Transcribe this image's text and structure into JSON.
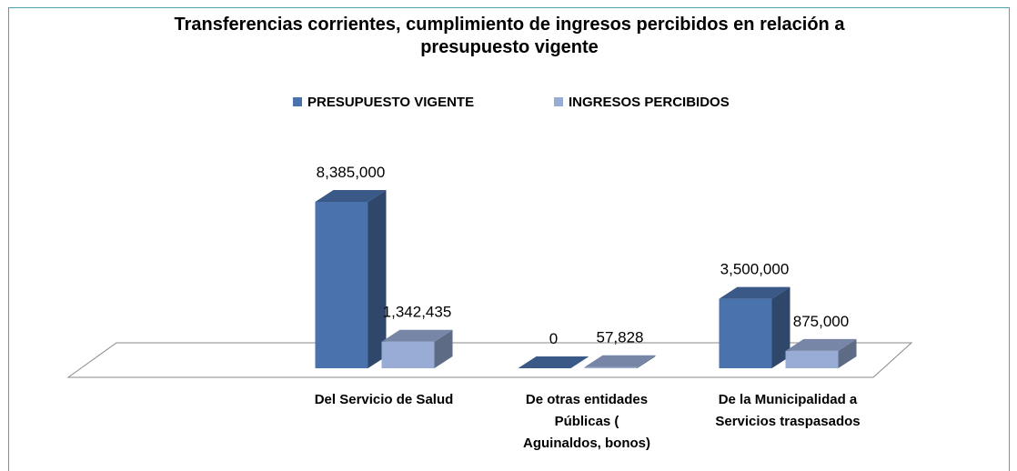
{
  "chart_data": {
    "type": "bar3d",
    "title": "Transferencias corrientes, cumplimiento de ingresos percibidos en relación a presupuesto vigente",
    "categories": [
      "Del Servicio de Salud",
      "De otras entidades Públicas ( Aguinaldos, bonos)",
      "De la Municipalidad a Servicios traspasados"
    ],
    "series": [
      {
        "name": "PRESUPUESTO VIGENTE",
        "color": "#4a72ad",
        "values": [
          8385000,
          0,
          3500000
        ],
        "value_labels": [
          "8,385,000",
          "0",
          "3,500,000"
        ]
      },
      {
        "name": "INGRESOS PERCIBIDOS",
        "color": "#98acd6",
        "values": [
          1342435,
          57828,
          875000
        ],
        "value_labels": [
          "1,342,435",
          "57,828",
          "875,000"
        ]
      }
    ],
    "legend": "top"
  }
}
